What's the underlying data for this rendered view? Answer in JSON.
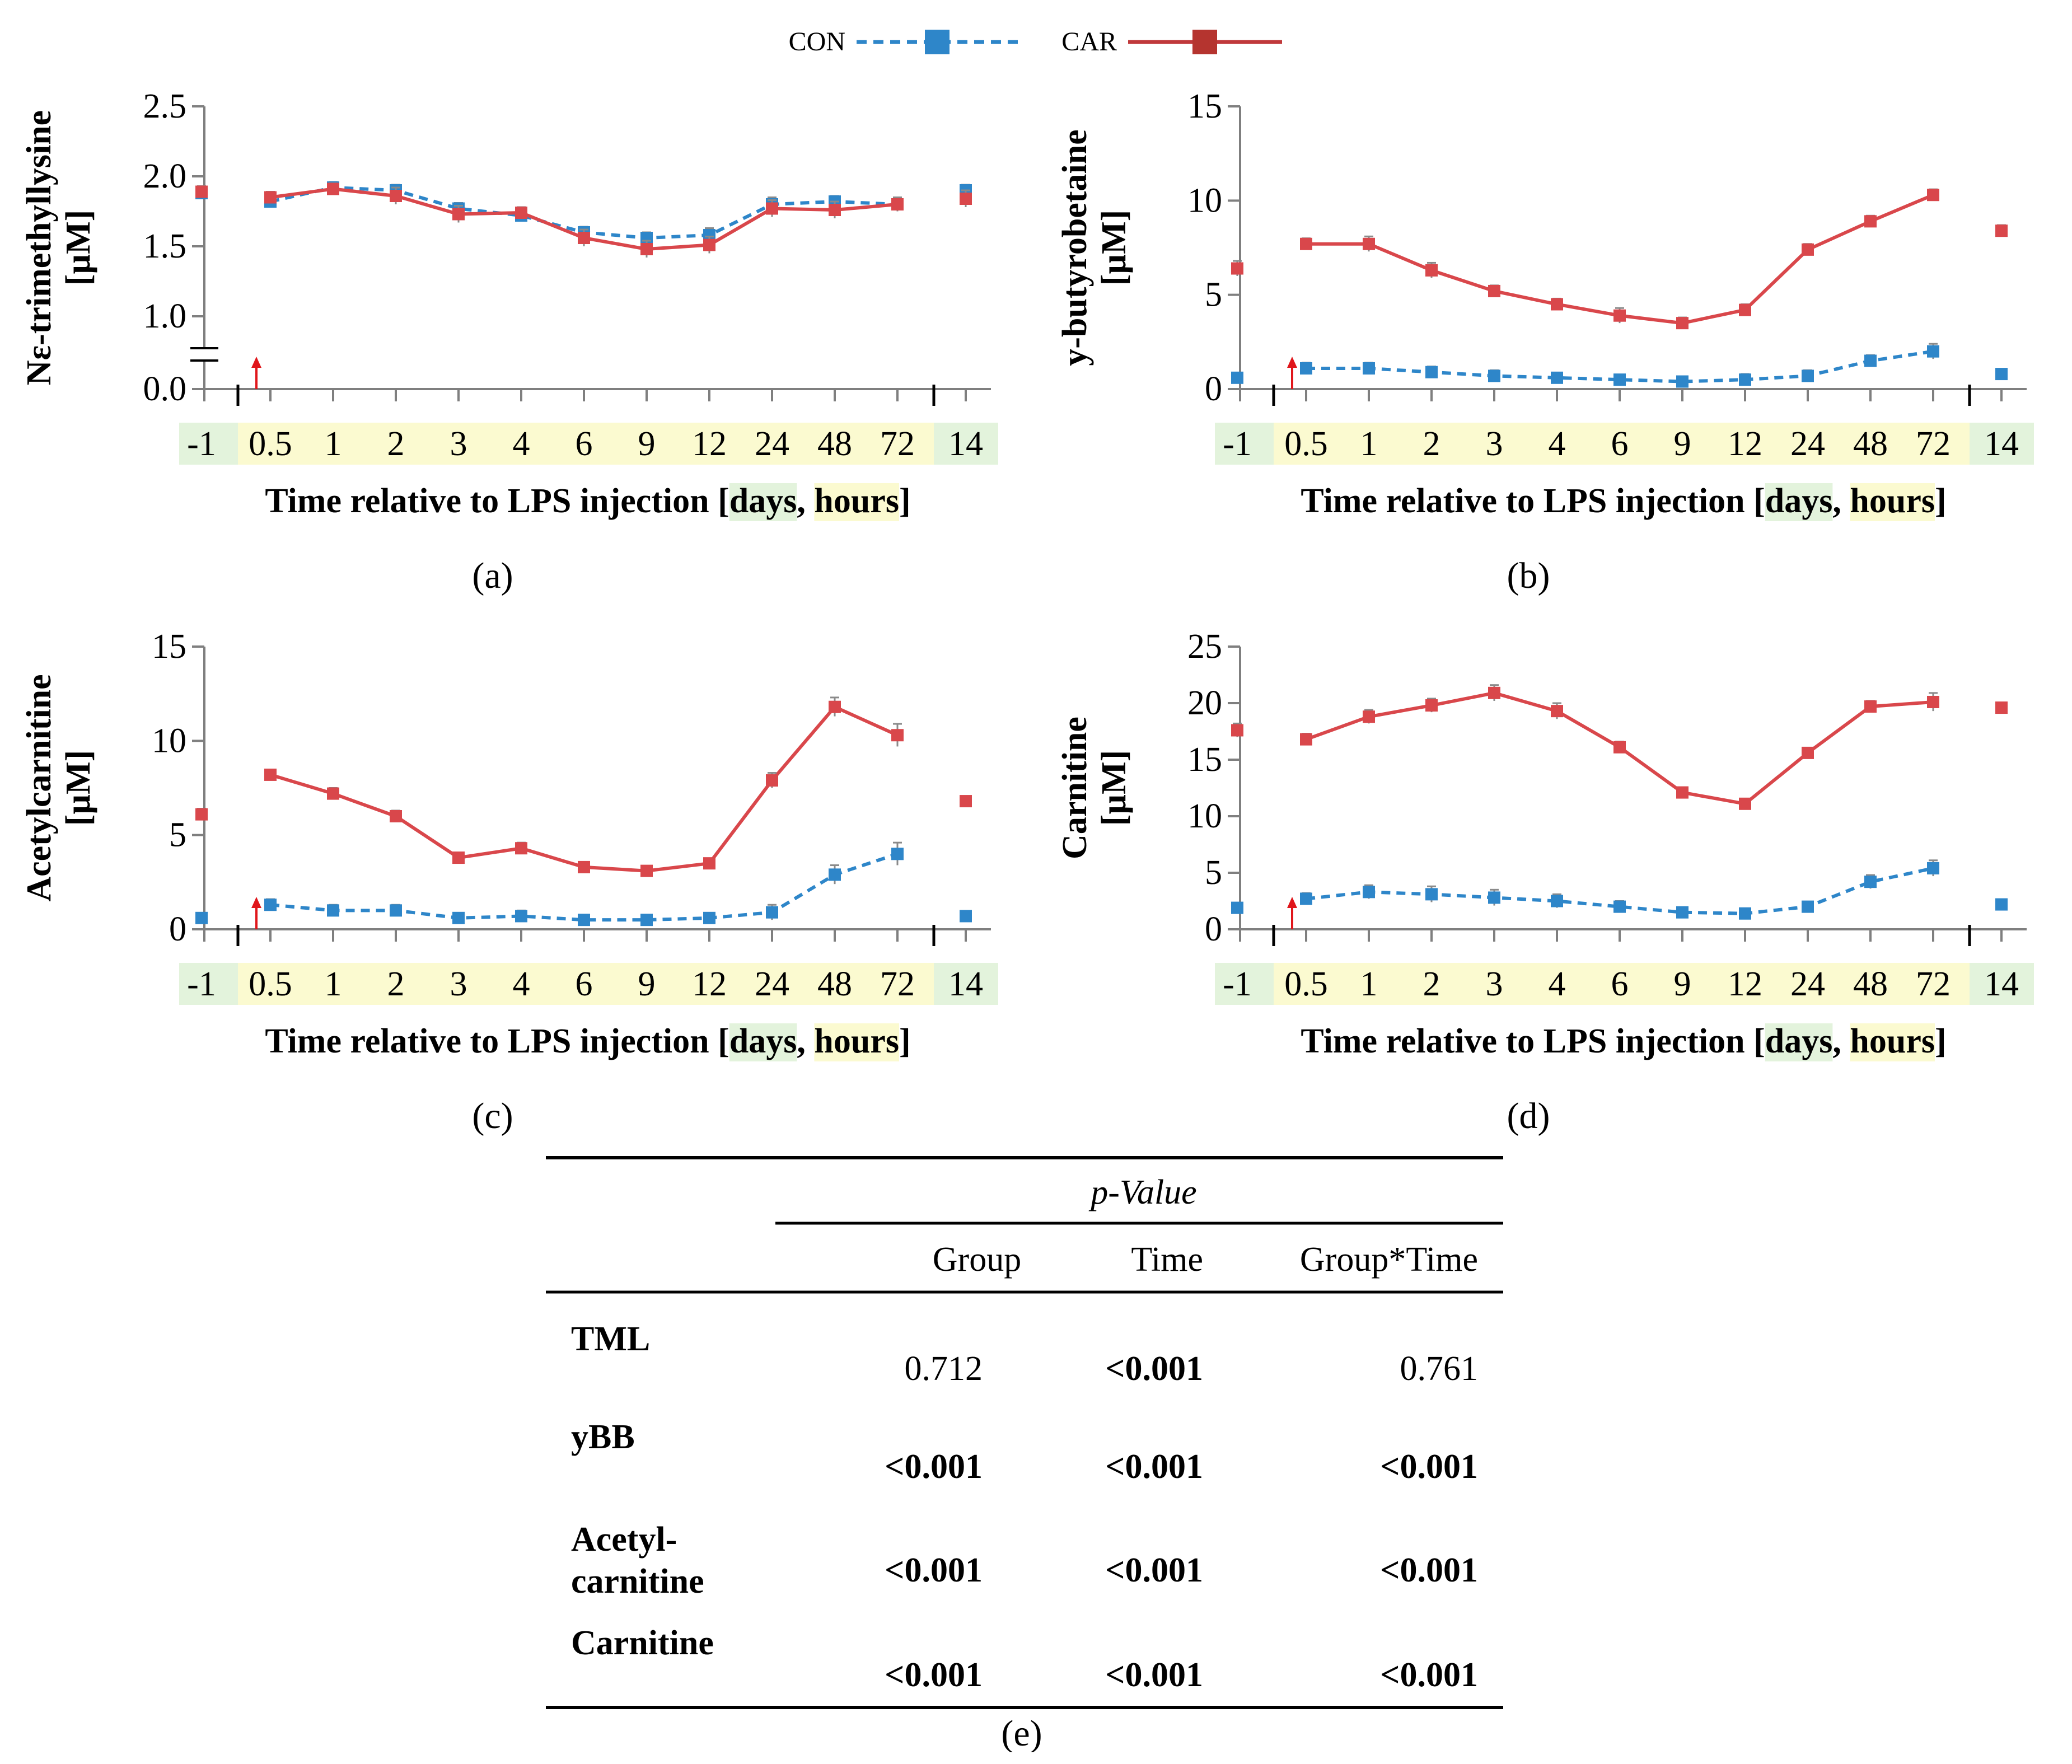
{
  "legend": {
    "con_label": "CON",
    "car_label": "CAR"
  },
  "colors": {
    "con": "#2e86c9",
    "car": "#d9474b",
    "day_bg": "#e3f3dc",
    "hour_bg": "#fbfad0"
  },
  "chart_data": [
    {
      "id": "a",
      "type": "line",
      "panel_label": "(a)",
      "ylabel_line1": "Nε-trimethyllysine",
      "ylabel_line2": "[µM]",
      "xlabel_prefix": "Time relative to LPS injection [",
      "xlabel_days": "days",
      "xlabel_sep": ", ",
      "xlabel_hours": "hours",
      "xlabel_suffix": "]",
      "categories": [
        "-1",
        "0.5",
        "1",
        "2",
        "3",
        "4",
        "6",
        "9",
        "12",
        "24",
        "48",
        "72",
        "14"
      ],
      "ylim": [
        0,
        2.5
      ],
      "y_axis_break": true,
      "yticks": [
        "0.0",
        "1.0",
        "1.5",
        "2.0",
        "2.5"
      ],
      "ytick_values": [
        0,
        1.0,
        1.5,
        2.0,
        2.5
      ],
      "series": [
        {
          "name": "CON",
          "values": [
            1.88,
            1.82,
            1.92,
            1.9,
            1.77,
            1.72,
            1.6,
            1.56,
            1.58,
            1.8,
            1.82,
            1.8,
            1.9
          ],
          "errors": [
            0.03,
            0.03,
            0.04,
            0.04,
            0.04,
            0.03,
            0.04,
            0.04,
            0.05,
            0.05,
            0.04,
            0.04,
            0.04
          ]
        },
        {
          "name": "CAR",
          "values": [
            1.89,
            1.85,
            1.91,
            1.86,
            1.73,
            1.74,
            1.56,
            1.48,
            1.51,
            1.77,
            1.76,
            1.8,
            1.84
          ],
          "errors": [
            0.04,
            0.04,
            0.04,
            0.06,
            0.06,
            0.04,
            0.06,
            0.06,
            0.06,
            0.06,
            0.06,
            0.05,
            0.06
          ]
        }
      ]
    },
    {
      "id": "b",
      "type": "line",
      "panel_label": "(b)",
      "ylabel_line1": "y-butyrobetaine",
      "ylabel_line2": "[µM]",
      "xlabel_prefix": "Time relative to LPS injection [",
      "xlabel_days": "days",
      "xlabel_sep": ", ",
      "xlabel_hours": "hours",
      "xlabel_suffix": "]",
      "categories": [
        "-1",
        "0.5",
        "1",
        "2",
        "3",
        "4",
        "6",
        "9",
        "12",
        "24",
        "48",
        "72",
        "14"
      ],
      "ylim": [
        0,
        15
      ],
      "y_axis_break": false,
      "yticks": [
        "0",
        "5",
        "10",
        "15"
      ],
      "ytick_values": [
        0,
        5,
        10,
        15
      ],
      "series": [
        {
          "name": "CON",
          "values": [
            0.6,
            1.1,
            1.1,
            0.9,
            0.7,
            0.6,
            0.5,
            0.4,
            0.5,
            0.7,
            1.5,
            2.0,
            0.8
          ],
          "errors": [
            0.2,
            0.3,
            0.3,
            0.3,
            0.3,
            0.2,
            0.2,
            0.2,
            0.3,
            0.3,
            0.3,
            0.4,
            0.2
          ]
        },
        {
          "name": "CAR",
          "values": [
            6.4,
            7.7,
            7.7,
            6.3,
            5.2,
            4.5,
            3.9,
            3.5,
            4.2,
            7.4,
            8.9,
            10.3,
            8.4
          ],
          "errors": [
            0.4,
            0.3,
            0.4,
            0.4,
            0.3,
            0.3,
            0.4,
            0.3,
            0.3,
            0.3,
            0.3,
            0.3,
            0.3
          ]
        }
      ]
    },
    {
      "id": "c",
      "type": "line",
      "panel_label": "(c)",
      "ylabel_line1": "Acetylcarnitine",
      "ylabel_line2": "[µM]",
      "xlabel_prefix": "Time relative to LPS injection [",
      "xlabel_days": "days",
      "xlabel_sep": ", ",
      "xlabel_hours": "hours",
      "xlabel_suffix": "]",
      "categories": [
        "-1",
        "0.5",
        "1",
        "2",
        "3",
        "4",
        "6",
        "9",
        "12",
        "24",
        "48",
        "72",
        "14"
      ],
      "ylim": [
        0,
        15
      ],
      "y_axis_break": false,
      "yticks": [
        "0",
        "5",
        "10",
        "15"
      ],
      "ytick_values": [
        0,
        5,
        10,
        15
      ],
      "series": [
        {
          "name": "CON",
          "values": [
            0.6,
            1.3,
            1.0,
            1.0,
            0.6,
            0.7,
            0.5,
            0.5,
            0.6,
            0.9,
            2.9,
            4.0,
            0.7
          ],
          "errors": [
            0.1,
            0.3,
            0.3,
            0.3,
            0.2,
            0.3,
            0.2,
            0.2,
            0.2,
            0.4,
            0.5,
            0.6,
            0.2
          ]
        },
        {
          "name": "CAR",
          "values": [
            6.1,
            8.2,
            7.2,
            6.0,
            3.8,
            4.3,
            3.3,
            3.1,
            3.5,
            7.9,
            11.8,
            10.3,
            6.8
          ],
          "errors": [
            0.3,
            0.2,
            0.3,
            0.3,
            0.2,
            0.3,
            0.2,
            0.2,
            0.2,
            0.4,
            0.5,
            0.6,
            0.2
          ]
        }
      ]
    },
    {
      "id": "d",
      "type": "line",
      "panel_label": "(d)",
      "ylabel_line1": "Carnitine",
      "ylabel_line2": "[µM]",
      "xlabel_prefix": "Time relative to LPS injection [",
      "xlabel_days": "days",
      "xlabel_sep": ", ",
      "xlabel_hours": "hours",
      "xlabel_suffix": "]",
      "categories": [
        "-1",
        "0.5",
        "1",
        "2",
        "3",
        "4",
        "6",
        "9",
        "12",
        "24",
        "48",
        "72",
        "14"
      ],
      "ylim": [
        0,
        25
      ],
      "y_axis_break": false,
      "yticks": [
        "0",
        "5",
        "10",
        "15",
        "20",
        "25"
      ],
      "ytick_values": [
        0,
        5,
        10,
        15,
        20,
        25
      ],
      "series": [
        {
          "name": "CON",
          "values": [
            1.9,
            2.7,
            3.3,
            3.1,
            2.8,
            2.5,
            2.0,
            1.5,
            1.4,
            2.0,
            4.2,
            5.4,
            2.2
          ],
          "errors": [
            0.3,
            0.5,
            0.6,
            0.7,
            0.7,
            0.6,
            0.5,
            0.4,
            0.4,
            0.4,
            0.6,
            0.7,
            0.3
          ]
        },
        {
          "name": "CAR",
          "values": [
            17.6,
            16.8,
            18.8,
            19.8,
            20.9,
            19.3,
            16.1,
            12.1,
            11.1,
            15.6,
            19.7,
            20.1,
            19.6
          ],
          "errors": [
            0.6,
            0.5,
            0.6,
            0.6,
            0.7,
            0.7,
            0.5,
            0.4,
            0.4,
            0.4,
            0.5,
            0.8,
            0.4
          ]
        }
      ]
    }
  ],
  "table": {
    "caption": "(e)",
    "spanner": "p-Value",
    "headers": [
      "Group",
      "Time",
      "Group*Time"
    ],
    "rows": [
      {
        "label_line1": "TML",
        "label_line2": "",
        "group": "0.712",
        "time": "<0.001",
        "group_time": "0.761",
        "group_bold": false,
        "time_bold": true,
        "gt_bold": false
      },
      {
        "label_line1": "yBB",
        "label_line2": "",
        "group": "<0.001",
        "time": "<0.001",
        "group_time": "<0.001",
        "group_bold": true,
        "time_bold": true,
        "gt_bold": true
      },
      {
        "label_line1": "Acetyl-",
        "label_line2": "carnitine",
        "group": "<0.001",
        "time": "<0.001",
        "group_time": "<0.001",
        "group_bold": true,
        "time_bold": true,
        "gt_bold": true
      },
      {
        "label_line1": "Carnitine",
        "label_line2": "",
        "group": "<0.001",
        "time": "<0.001",
        "group_time": "<0.001",
        "group_bold": true,
        "time_bold": true,
        "gt_bold": true
      }
    ]
  }
}
